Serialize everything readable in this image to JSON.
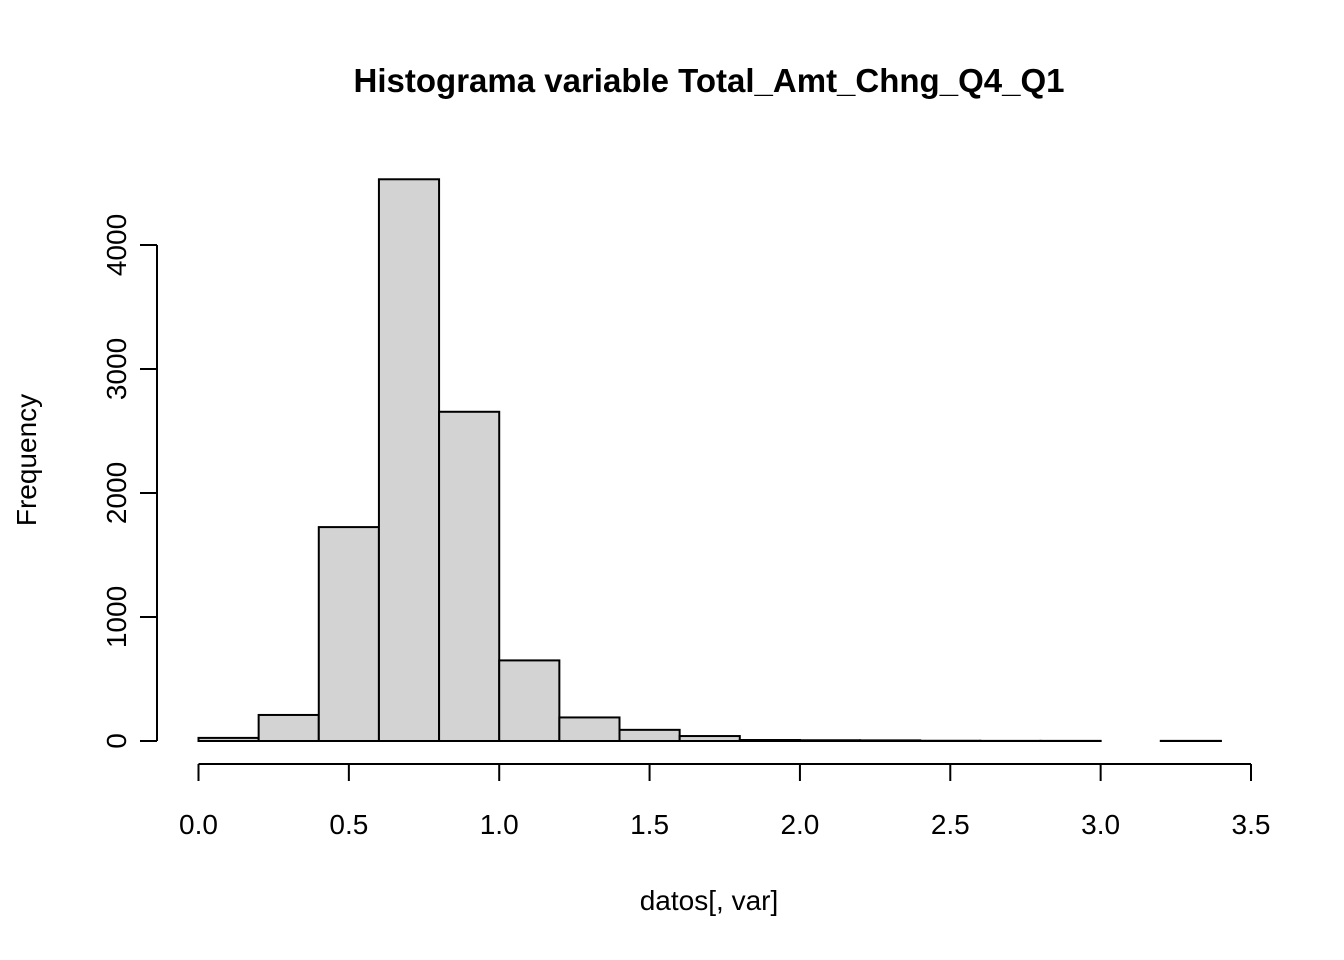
{
  "chart_data": {
    "type": "bar",
    "subtype": "histogram",
    "title": "Histograma variable Total_Amt_Chng_Q4_Q1",
    "xlabel": "datos[, var]",
    "ylabel": "Frequency",
    "bar_color": "#d3d3d3",
    "border_color": "#000000",
    "xlim": [
      0,
      3.5
    ],
    "ylim": [
      0,
      4500
    ],
    "x_ticks": [
      "0.0",
      "0.5",
      "1.0",
      "1.5",
      "2.0",
      "2.5",
      "3.0",
      "3.5"
    ],
    "y_ticks": [
      "0",
      "1000",
      "2000",
      "3000",
      "4000"
    ],
    "bins": [
      {
        "start": 0.0,
        "end": 0.2,
        "count": 25
      },
      {
        "start": 0.2,
        "end": 0.4,
        "count": 210
      },
      {
        "start": 0.4,
        "end": 0.6,
        "count": 1725
      },
      {
        "start": 0.6,
        "end": 0.8,
        "count": 4530
      },
      {
        "start": 0.8,
        "end": 1.0,
        "count": 2655
      },
      {
        "start": 1.0,
        "end": 1.2,
        "count": 650
      },
      {
        "start": 1.2,
        "end": 1.4,
        "count": 190
      },
      {
        "start": 1.4,
        "end": 1.6,
        "count": 90
      },
      {
        "start": 1.6,
        "end": 1.8,
        "count": 40
      },
      {
        "start": 1.8,
        "end": 2.0,
        "count": 8
      },
      {
        "start": 2.0,
        "end": 2.2,
        "count": 6
      },
      {
        "start": 2.2,
        "end": 2.4,
        "count": 5
      },
      {
        "start": 2.4,
        "end": 2.6,
        "count": 2
      },
      {
        "start": 2.6,
        "end": 2.8,
        "count": 1
      },
      {
        "start": 2.8,
        "end": 3.0,
        "count": 1
      },
      {
        "start": 3.0,
        "end": 3.2,
        "count": 0
      },
      {
        "start": 3.2,
        "end": 3.4,
        "count": 1
      }
    ]
  }
}
